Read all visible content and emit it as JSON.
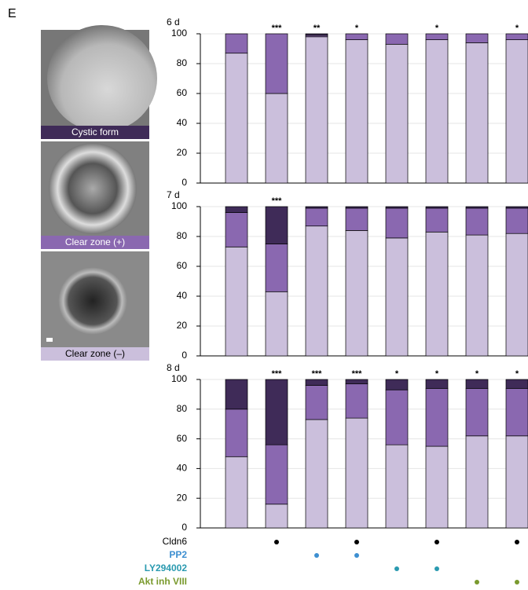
{
  "panel_label": "E",
  "chart_data": [
    {
      "type": "bar",
      "stacked": true,
      "title": "6 d",
      "ylim": [
        0,
        100
      ],
      "yticks": [
        0,
        20,
        40,
        60,
        80,
        100
      ],
      "grid": true,
      "series": [
        {
          "name": "Clear zone (–)",
          "color": "#cbbfdc",
          "values": [
            87,
            60,
            98,
            96,
            93,
            96,
            94,
            96
          ]
        },
        {
          "name": "Clear zone (+)",
          "color": "#8a68b0",
          "values": [
            13,
            40,
            1,
            4,
            7,
            4,
            6,
            4
          ]
        },
        {
          "name": "Cystic form",
          "color": "#3f2b58",
          "values": [
            0,
            0,
            1,
            0,
            0,
            0,
            0,
            0
          ]
        }
      ],
      "annotations": [
        null,
        "***",
        "**",
        "*",
        null,
        "*",
        null,
        "*"
      ]
    },
    {
      "type": "bar",
      "stacked": true,
      "title": "7 d",
      "ylim": [
        0,
        100
      ],
      "yticks": [
        0,
        20,
        40,
        60,
        80,
        100
      ],
      "grid": true,
      "series": [
        {
          "name": "Clear zone (–)",
          "color": "#cbbfdc",
          "values": [
            73,
            43,
            87,
            84,
            79,
            83,
            81,
            82
          ]
        },
        {
          "name": "Clear zone (+)",
          "color": "#8a68b0",
          "values": [
            23,
            32,
            12,
            15,
            20,
            16,
            18,
            17
          ]
        },
        {
          "name": "Cystic form",
          "color": "#3f2b58",
          "values": [
            4,
            25,
            1,
            1,
            1,
            1,
            1,
            1
          ]
        }
      ],
      "annotations": [
        null,
        "***",
        null,
        null,
        null,
        null,
        null,
        null
      ]
    },
    {
      "type": "bar",
      "stacked": true,
      "title": "8 d",
      "ylim": [
        0,
        100
      ],
      "yticks": [
        0,
        20,
        40,
        60,
        80,
        100
      ],
      "grid": true,
      "series": [
        {
          "name": "Clear zone (–)",
          "color": "#cbbfdc",
          "values": [
            48,
            16,
            73,
            74,
            56,
            55,
            62,
            62
          ]
        },
        {
          "name": "Clear zone (+)",
          "color": "#8a68b0",
          "values": [
            32,
            40,
            23,
            23,
            37,
            39,
            32,
            32
          ]
        },
        {
          "name": "Cystic form",
          "color": "#3f2b58",
          "values": [
            20,
            44,
            4,
            3,
            7,
            6,
            6,
            6
          ]
        }
      ],
      "annotations": [
        null,
        "***",
        "***",
        "***",
        "*",
        "*",
        "*",
        "*"
      ]
    }
  ],
  "treatments": [
    {
      "name": "Cldn6",
      "color": "#000000",
      "present": [
        0,
        1,
        0,
        1,
        0,
        1,
        0,
        1
      ]
    },
    {
      "name": "PP2",
      "color": "#3d8fd1",
      "present": [
        0,
        0,
        1,
        1,
        0,
        0,
        0,
        0
      ]
    },
    {
      "name": "LY294002",
      "color": "#2a9ab0",
      "present": [
        0,
        0,
        0,
        0,
        1,
        1,
        0,
        0
      ]
    },
    {
      "name": "Akt inh VIII",
      "color": "#7a9a2e",
      "present": [
        0,
        0,
        0,
        0,
        0,
        0,
        1,
        1
      ]
    }
  ]
}
